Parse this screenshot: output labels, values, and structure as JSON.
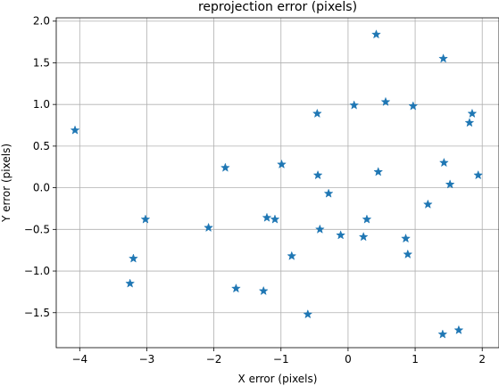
{
  "chart_data": {
    "type": "scatter",
    "title": "reprojection error (pixels)",
    "xlabel": "X error (pixels)",
    "ylabel": "Y error (pixels)",
    "xlim": [
      -4.35,
      2.25
    ],
    "ylim": [
      -1.92,
      2.04
    ],
    "xticks": [
      -4,
      -3,
      -2,
      -1,
      0,
      1,
      2
    ],
    "yticks": [
      -1.5,
      -1.0,
      -0.5,
      0.0,
      0.5,
      1.0,
      1.5,
      2.0
    ],
    "xtick_labels": [
      "−4",
      "−3",
      "−2",
      "−1",
      "0",
      "1",
      "2"
    ],
    "ytick_labels": [
      "−1.5",
      "−1.0",
      "−0.5",
      "0.0",
      "0.5",
      "1.0",
      "1.5",
      "2.0"
    ],
    "grid": true,
    "marker": "star",
    "color": "#1f77b4",
    "series": [
      {
        "x": [
          -4.07,
          -3.2,
          -3.25,
          -3.02,
          -2.08,
          -1.83,
          -1.67,
          -1.26,
          -1.21,
          -1.09,
          -0.99,
          -0.84,
          -0.6,
          -0.46,
          -0.45,
          -0.42,
          -0.29,
          -0.11,
          0.09,
          0.23,
          0.28,
          0.42,
          0.45,
          0.56,
          0.86,
          0.89,
          0.97,
          1.19,
          1.41,
          1.42,
          1.43,
          1.52,
          1.65,
          1.81,
          1.85,
          1.94
        ],
        "y": [
          0.69,
          -0.85,
          -1.15,
          -0.38,
          -0.48,
          0.24,
          -1.21,
          -1.24,
          -0.36,
          -0.38,
          0.28,
          -0.82,
          -1.52,
          0.89,
          0.15,
          -0.5,
          -0.07,
          -0.57,
          0.99,
          -0.59,
          -0.38,
          1.84,
          0.19,
          1.03,
          -0.61,
          -0.8,
          0.98,
          -0.2,
          -1.76,
          1.55,
          0.3,
          0.04,
          -1.71,
          0.78,
          0.89,
          0.15
        ]
      }
    ]
  }
}
